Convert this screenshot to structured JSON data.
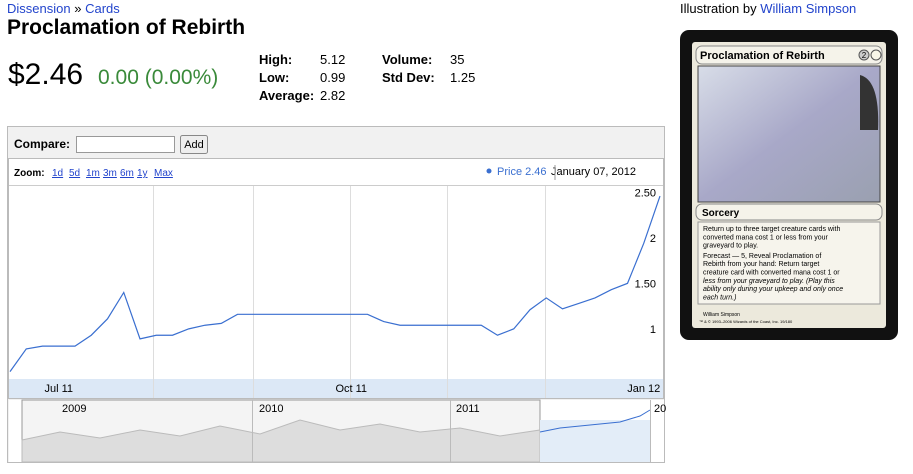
{
  "breadcrumb": {
    "set": "Dissension",
    "separator": "»",
    "section": "Cards"
  },
  "title": "Proclamation of Rebirth",
  "price": "$2.46",
  "change": "0.00 (0.00%)",
  "stats_left": [
    {
      "label": "High:",
      "value": "5.12"
    },
    {
      "label": "Low:",
      "value": "0.99"
    },
    {
      "label": "Average:",
      "value": "2.82"
    }
  ],
  "stats_right": [
    {
      "label": "Volume:",
      "value": "35"
    },
    {
      "label": "Std Dev:",
      "value": "1.25"
    }
  ],
  "illustration": {
    "label": "Illustration by",
    "artist": "William Simpson"
  },
  "compare": {
    "label": "Compare:",
    "button": "Add"
  },
  "zoom": {
    "label": "Zoom:",
    "options": [
      "1d",
      "5d",
      "1m",
      "3m",
      "6m",
      "1y",
      "Max"
    ]
  },
  "legend_date": "January 07, 2012",
  "chart_data": {
    "type": "line",
    "categories": [
      null,
      null,
      null,
      "Jul 11",
      null,
      null,
      null,
      null,
      null,
      null,
      null,
      null,
      null,
      null,
      null,
      null,
      null,
      null,
      null,
      null,
      null,
      "Oct 11",
      null,
      null,
      null,
      null,
      null,
      null,
      null,
      null,
      null,
      null,
      null,
      null,
      null,
      null,
      null,
      null,
      null,
      "Jan 12",
      null
    ],
    "series": [
      {
        "name": "Price",
        "color": "#3a6fd0",
        "current": "2.46",
        "values": [
          0.53,
          0.78,
          0.81,
          0.81,
          0.81,
          0.93,
          1.11,
          1.4,
          0.89,
          0.93,
          0.93,
          1.0,
          1.04,
          1.06,
          1.16,
          1.16,
          1.16,
          1.16,
          1.16,
          1.16,
          1.16,
          1.16,
          1.16,
          1.08,
          1.04,
          1.04,
          1.04,
          1.04,
          1.04,
          1.04,
          0.93,
          1.0,
          1.21,
          1.34,
          1.22,
          1.28,
          1.34,
          1.43,
          1.5,
          1.94,
          2.46
        ]
      }
    ],
    "ylim": [
      0.46,
      2.57
    ],
    "yticks": [
      1,
      {
        "value": 1.5,
        "label": "1.50"
      },
      2,
      {
        "value": 2.5,
        "label": "2.50"
      }
    ]
  },
  "navigator": {
    "years": [
      "2009",
      "2010",
      "2011",
      "20"
    ]
  },
  "card": {
    "name": "Proclamation of Rebirth",
    "cost": "2",
    "type_line": "Sorcery",
    "rules": [
      "Return up to three target creature cards with",
      "converted mana cost 1 or less from your",
      "graveyard to play.",
      "Forecast — 5, Reveal Proclamation of",
      "Rebirth from your hand: Return target",
      "creature card with converted mana cost 1 or",
      "less from your graveyard to play. (Play this",
      "ability only during your upkeep and only once",
      "each turn.)"
    ],
    "artist": "William Simpson",
    "copyright": "™ & © 1993–2006 Wizards of the Coast, Inc. 19/180"
  }
}
